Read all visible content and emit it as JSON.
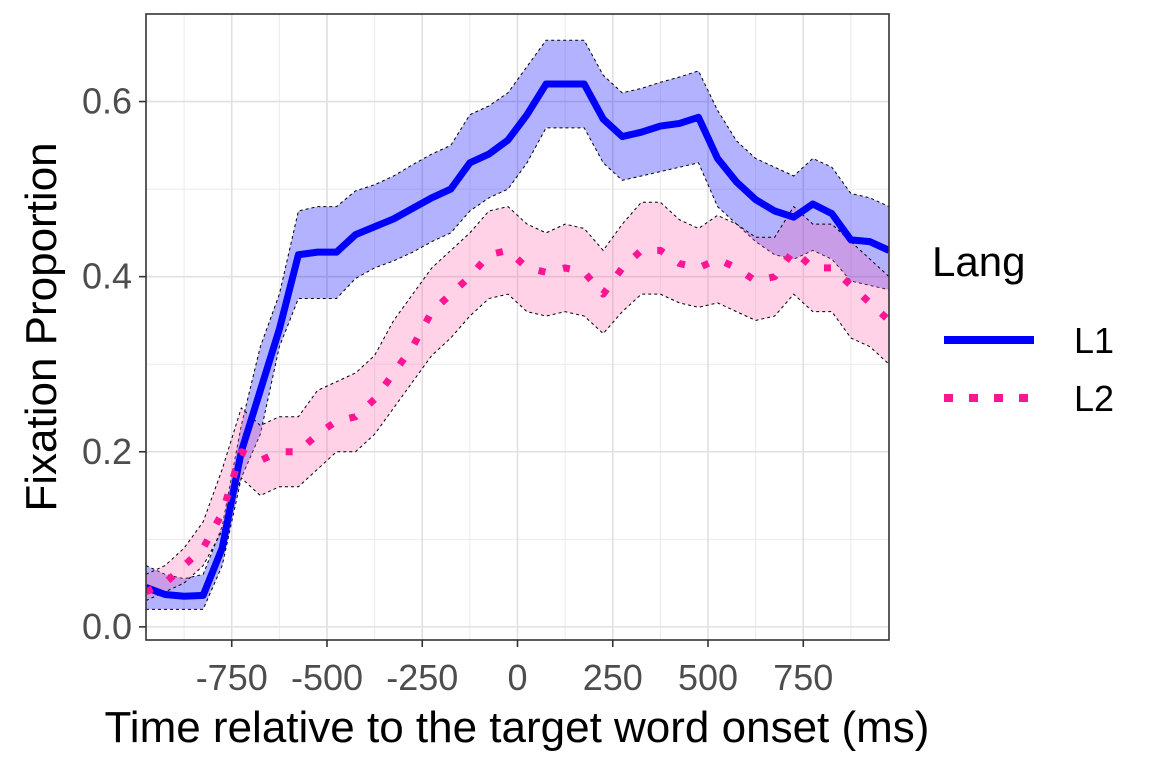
{
  "chart_data": {
    "type": "line",
    "xlabel": "Time relative to the target word onset (ms)",
    "ylabel": "Fixation Proportion",
    "xlim": [
      -975,
      975
    ],
    "ylim": [
      -0.015,
      0.7
    ],
    "x_ticks": [
      -750,
      -500,
      -250,
      0,
      250,
      500,
      750
    ],
    "x_tick_labels": [
      "-750",
      "-500",
      "-250",
      "0",
      "250",
      "500",
      "750"
    ],
    "x_minor_ticks": [
      -875,
      -625,
      -375,
      -125,
      125,
      375,
      625,
      875
    ],
    "y_ticks": [
      0.0,
      0.2,
      0.4,
      0.6
    ],
    "y_tick_labels": [
      "0.0",
      "0.2",
      "0.4",
      "0.6"
    ],
    "y_minor_ticks": [
      0.1,
      0.3,
      0.5
    ],
    "grid": true,
    "legend": {
      "title": "Lang",
      "position": "right"
    },
    "x": [
      -975,
      -925,
      -875,
      -825,
      -775,
      -725,
      -675,
      -625,
      -575,
      -525,
      -475,
      -425,
      -375,
      -325,
      -275,
      -225,
      -175,
      -125,
      -75,
      -25,
      25,
      75,
      125,
      175,
      225,
      275,
      325,
      375,
      425,
      475,
      525,
      575,
      625,
      675,
      725,
      775,
      825,
      875,
      925,
      975
    ],
    "series": [
      {
        "name": "L1",
        "color": "#0000ff",
        "fill": "#0000ff",
        "linestyle": "solid",
        "values": [
          0.045,
          0.037,
          0.035,
          0.036,
          0.09,
          0.2,
          0.27,
          0.34,
          0.425,
          0.428,
          0.428,
          0.448,
          0.457,
          0.466,
          0.478,
          0.49,
          0.5,
          0.53,
          0.54,
          0.556,
          0.585,
          0.62,
          0.62,
          0.62,
          0.58,
          0.56,
          0.565,
          0.572,
          0.575,
          0.582,
          0.535,
          0.508,
          0.488,
          0.475,
          0.468,
          0.483,
          0.472,
          0.442,
          0.44,
          0.43
        ],
        "lower": [
          0.02,
          0.02,
          0.02,
          0.02,
          0.07,
          0.17,
          0.22,
          0.32,
          0.375,
          0.375,
          0.375,
          0.398,
          0.41,
          0.418,
          0.428,
          0.44,
          0.45,
          0.475,
          0.49,
          0.5,
          0.53,
          0.57,
          0.57,
          0.57,
          0.53,
          0.51,
          0.515,
          0.52,
          0.525,
          0.53,
          0.48,
          0.46,
          0.44,
          0.425,
          0.42,
          0.43,
          0.42,
          0.395,
          0.39,
          0.385
        ],
        "upper": [
          0.07,
          0.06,
          0.055,
          0.06,
          0.115,
          0.23,
          0.32,
          0.38,
          0.475,
          0.48,
          0.48,
          0.498,
          0.505,
          0.515,
          0.528,
          0.54,
          0.55,
          0.585,
          0.595,
          0.61,
          0.64,
          0.67,
          0.67,
          0.67,
          0.63,
          0.61,
          0.615,
          0.622,
          0.628,
          0.635,
          0.59,
          0.555,
          0.535,
          0.525,
          0.515,
          0.535,
          0.525,
          0.495,
          0.49,
          0.48
        ]
      },
      {
        "name": "L2",
        "color": "#ff1493",
        "fill": "#ff69b4",
        "linestyle": "dotted",
        "values": [
          0.04,
          0.05,
          0.07,
          0.09,
          0.13,
          0.2,
          0.19,
          0.2,
          0.2,
          0.22,
          0.235,
          0.24,
          0.26,
          0.29,
          0.32,
          0.36,
          0.38,
          0.4,
          0.425,
          0.43,
          0.41,
          0.405,
          0.41,
          0.405,
          0.38,
          0.41,
          0.43,
          0.43,
          0.415,
          0.41,
          0.42,
          0.41,
          0.395,
          0.4,
          0.43,
          0.41,
          0.41,
          0.39,
          0.37,
          0.35
        ],
        "lower": [
          0.03,
          0.04,
          0.05,
          0.07,
          0.11,
          0.17,
          0.15,
          0.16,
          0.16,
          0.18,
          0.2,
          0.2,
          0.22,
          0.25,
          0.28,
          0.31,
          0.33,
          0.355,
          0.375,
          0.38,
          0.36,
          0.355,
          0.36,
          0.355,
          0.335,
          0.36,
          0.38,
          0.38,
          0.37,
          0.365,
          0.37,
          0.36,
          0.35,
          0.355,
          0.38,
          0.36,
          0.36,
          0.33,
          0.32,
          0.3
        ],
        "upper": [
          0.06,
          0.07,
          0.09,
          0.12,
          0.18,
          0.25,
          0.23,
          0.24,
          0.24,
          0.27,
          0.28,
          0.29,
          0.31,
          0.35,
          0.38,
          0.41,
          0.43,
          0.45,
          0.475,
          0.48,
          0.46,
          0.45,
          0.46,
          0.455,
          0.43,
          0.46,
          0.485,
          0.485,
          0.465,
          0.455,
          0.47,
          0.46,
          0.445,
          0.445,
          0.48,
          0.46,
          0.46,
          0.44,
          0.42,
          0.4
        ]
      }
    ]
  }
}
